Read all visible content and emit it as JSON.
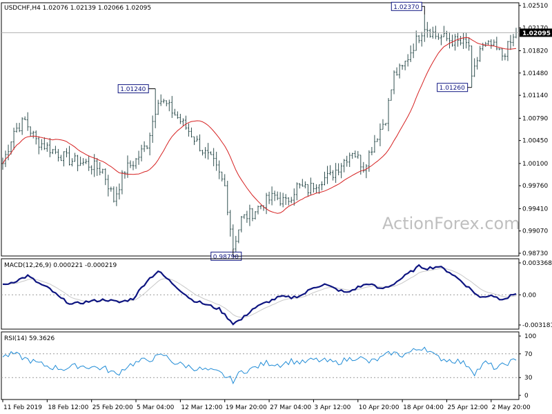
{
  "colors": {
    "bars": "#2f4f4f",
    "ma": "#d62020",
    "macd": "#0d1480",
    "signal": "#c8c8c8",
    "rsi": "#1f8bd6",
    "frame": "#000000",
    "dash": "#999999"
  },
  "watermark": "ActionForex.com",
  "chart_data": [
    {
      "type": "bar",
      "title": "USDCHF,H4  1.02076 1.02139 1.02066 1.02095",
      "y_ticks": [
        "1.02510",
        "1.02170",
        "1.01820",
        "1.01480",
        "1.01140",
        "1.00790",
        "1.00450",
        "1.00100",
        "0.99760",
        "0.99410",
        "0.99070",
        "0.98730"
      ],
      "ylim": [
        0.9873,
        1.0251
      ],
      "last_price": "1.02095",
      "annotations": [
        {
          "text": "1.02370",
          "value": 1.0237,
          "index": 152
        },
        {
          "text": "1.01240",
          "value": 1.0124,
          "index": 55
        },
        {
          "text": "1.01260",
          "value": 1.0126,
          "index": 169
        },
        {
          "text": "0.98790",
          "value": 0.9879,
          "index": 83
        }
      ],
      "x_ticks": [
        "11 Feb 2019",
        "18 Feb 12:00",
        "25 Feb 20:00",
        "5 Mar 04:00",
        "12 Mar 12:00",
        "19 Mar 20:00",
        "27 Mar 04:00",
        "3 Apr 12:00",
        "10 Apr 20:00",
        "18 Apr 04:00",
        "25 Apr 12:00",
        "2 May 20:00"
      ],
      "x_tick_index": [
        0,
        16,
        32,
        48,
        64,
        80,
        96,
        112,
        128,
        144,
        160,
        176
      ],
      "price_anchors": [
        [
          0,
          1.001
        ],
        [
          4,
          1.006
        ],
        [
          8,
          1.0075
        ],
        [
          12,
          1.0045
        ],
        [
          18,
          1.003
        ],
        [
          24,
          1.0015
        ],
        [
          30,
          1.001
        ],
        [
          36,
          1.0
        ],
        [
          40,
          0.9955
        ],
        [
          44,
          1.0
        ],
        [
          48,
          1.0015
        ],
        [
          52,
          1.004
        ],
        [
          56,
          1.011
        ],
        [
          60,
          1.0095
        ],
        [
          64,
          1.0075
        ],
        [
          68,
          1.0055
        ],
        [
          72,
          1.003
        ],
        [
          76,
          1.001
        ],
        [
          80,
          0.9975
        ],
        [
          83,
          0.9882
        ],
        [
          86,
          0.9925
        ],
        [
          90,
          0.9935
        ],
        [
          94,
          0.995
        ],
        [
          98,
          0.996
        ],
        [
          102,
          0.995
        ],
        [
          106,
          0.9975
        ],
        [
          110,
          0.997
        ],
        [
          114,
          0.9985
        ],
        [
          118,
          0.999
        ],
        [
          122,
          1.001
        ],
        [
          126,
          1.003
        ],
        [
          130,
          1.0005
        ],
        [
          134,
          1.0045
        ],
        [
          138,
          1.008
        ],
        [
          141,
          1.0145
        ],
        [
          144,
          1.0155
        ],
        [
          148,
          1.019
        ],
        [
          152,
          1.022
        ],
        [
          156,
          1.0205
        ],
        [
          160,
          1.02
        ],
        [
          164,
          1.0195
        ],
        [
          168,
          1.019
        ],
        [
          169,
          1.0135
        ],
        [
          172,
          1.0185
        ],
        [
          176,
          1.019
        ],
        [
          180,
          1.0175
        ],
        [
          184,
          1.02
        ],
        [
          185,
          1.02095
        ]
      ]
    },
    {
      "type": "line",
      "title": "MACD(12,26,9) 0.000221 -0.000219",
      "y_ticks": [
        "0.003368",
        "0.00",
        "-0.003181"
      ],
      "ylim": [
        -0.003181,
        0.003368
      ],
      "macd_anchors": [
        [
          0,
          0.001
        ],
        [
          5,
          0.0015
        ],
        [
          9,
          0.002
        ],
        [
          13,
          0.0012
        ],
        [
          17,
          0.0006
        ],
        [
          21,
          -0.0004
        ],
        [
          25,
          -0.001
        ],
        [
          31,
          -0.0007
        ],
        [
          37,
          -0.0005
        ],
        [
          42,
          -0.0008
        ],
        [
          47,
          -0.0004
        ],
        [
          52,
          0.0015
        ],
        [
          56,
          0.0025
        ],
        [
          60,
          0.0015
        ],
        [
          64,
          0.0005
        ],
        [
          68,
          -0.0005
        ],
        [
          72,
          -0.0009
        ],
        [
          78,
          -0.0015
        ],
        [
          83,
          -0.003
        ],
        [
          86,
          -0.0026
        ],
        [
          90,
          -0.0015
        ],
        [
          95,
          -0.0008
        ],
        [
          100,
          -0.0002
        ],
        [
          104,
          -0.0003
        ],
        [
          108,
          0.0
        ],
        [
          112,
          0.0008
        ],
        [
          116,
          0.0011
        ],
        [
          120,
          0.0006
        ],
        [
          124,
          0.0002
        ],
        [
          128,
          0.0008
        ],
        [
          132,
          0.0012
        ],
        [
          136,
          0.0006
        ],
        [
          140,
          0.001
        ],
        [
          145,
          0.002
        ],
        [
          150,
          0.003
        ],
        [
          153,
          0.0028
        ],
        [
          157,
          0.003
        ],
        [
          161,
          0.0024
        ],
        [
          165,
          0.0015
        ],
        [
          169,
          0.0005
        ],
        [
          172,
          -0.0003
        ],
        [
          176,
          0.0
        ],
        [
          179,
          -0.0004
        ],
        [
          182,
          -0.0003
        ],
        [
          185,
          0.0002
        ]
      ]
    },
    {
      "type": "line",
      "title": "RSI(14) 59.3626",
      "y_ticks": [
        "100",
        "70",
        "30",
        "0"
      ],
      "ylim": [
        0,
        100
      ],
      "rsi_anchors": [
        [
          0,
          65
        ],
        [
          4,
          70
        ],
        [
          8,
          62
        ],
        [
          12,
          55
        ],
        [
          17,
          48
        ],
        [
          22,
          45
        ],
        [
          27,
          50
        ],
        [
          32,
          48
        ],
        [
          37,
          45
        ],
        [
          41,
          35
        ],
        [
          45,
          50
        ],
        [
          50,
          58
        ],
        [
          54,
          62
        ],
        [
          58,
          68
        ],
        [
          62,
          55
        ],
        [
          66,
          50
        ],
        [
          70,
          45
        ],
        [
          74,
          42
        ],
        [
          78,
          38
        ],
        [
          83,
          25
        ],
        [
          86,
          40
        ],
        [
          90,
          45
        ],
        [
          95,
          55
        ],
        [
          100,
          52
        ],
        [
          104,
          58
        ],
        [
          108,
          55
        ],
        [
          112,
          60
        ],
        [
          116,
          58
        ],
        [
          120,
          55
        ],
        [
          124,
          60
        ],
        [
          128,
          65
        ],
        [
          132,
          56
        ],
        [
          136,
          62
        ],
        [
          140,
          72
        ],
        [
          144,
          68
        ],
        [
          148,
          75
        ],
        [
          152,
          82
        ],
        [
          156,
          65
        ],
        [
          160,
          60
        ],
        [
          164,
          58
        ],
        [
          168,
          50
        ],
        [
          170,
          38
        ],
        [
          174,
          55
        ],
        [
          178,
          45
        ],
        [
          182,
          55
        ],
        [
          185,
          59
        ]
      ]
    }
  ]
}
